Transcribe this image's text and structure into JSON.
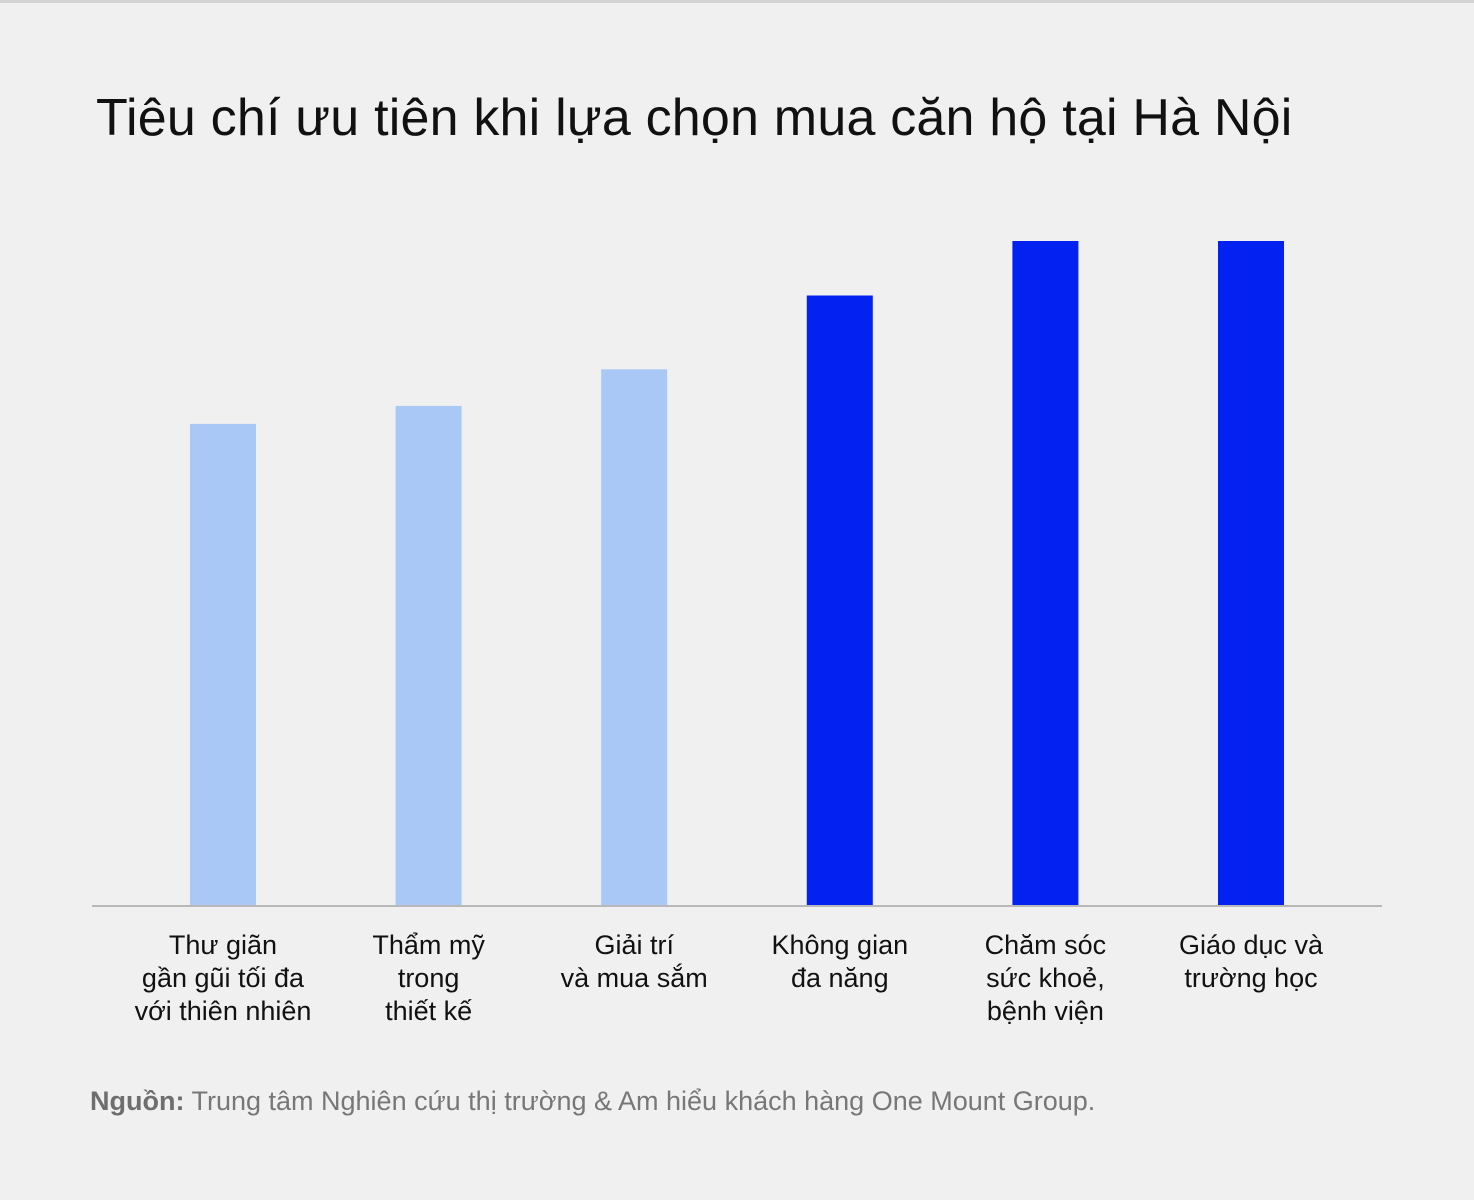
{
  "title": "Tiêu chí ưu tiên khi lựa chọn mua căn hộ tại Hà Nội",
  "source": {
    "label": "Nguồn:",
    "text": " Trung tâm Nghiên cứu thị trường & Am hiểu khách hàng One Mount Group."
  },
  "colors": {
    "background": "#f0f0f0",
    "light_bar": "#aac8f6",
    "dark_bar": "#0321f0",
    "axis": "#b8b8b8"
  },
  "chart_data": {
    "type": "bar",
    "title": "Tiêu chí ưu tiên khi lựa chọn mua căn hộ tại Hà Nội",
    "categories": [
      [
        "Thư giãn",
        "gần gũi tối đa",
        "với thiên nhiên"
      ],
      [
        "Thẩm mỹ",
        "trong",
        "thiết kế"
      ],
      [
        "Giải trí",
        "và mua sắm"
      ],
      [
        "Không gian",
        "đa năng"
      ],
      [
        "Chăm sóc",
        "sức khoẻ,",
        "bệnh viện"
      ],
      [
        "Giáo dục và",
        "trường học"
      ]
    ],
    "values": [
      72.5,
      75.2,
      80.7,
      91.8,
      100,
      100
    ],
    "highlight": [
      false,
      false,
      false,
      true,
      true,
      true
    ],
    "ylim": [
      0,
      100
    ],
    "xlabel": "",
    "ylabel": "",
    "grid": false,
    "y_axis_visible": false
  }
}
